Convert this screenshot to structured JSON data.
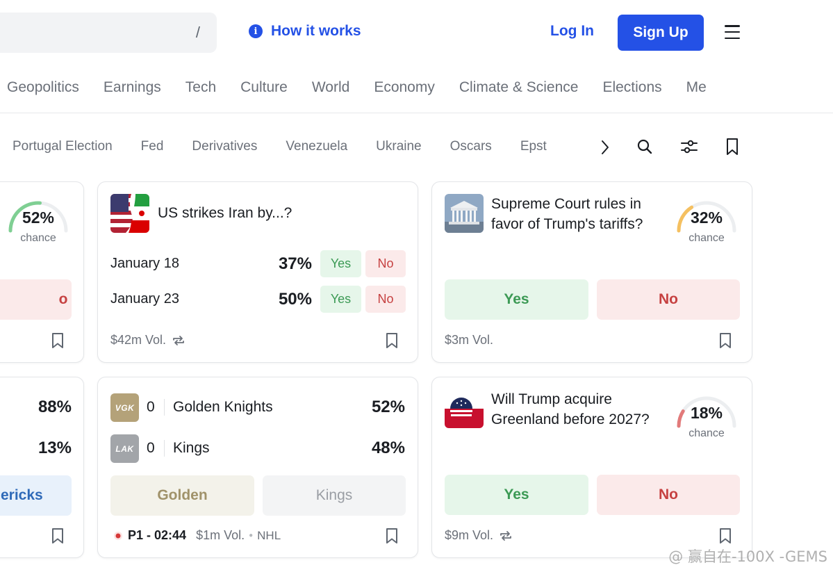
{
  "header": {
    "search_shortcut": "/",
    "how_it_works": "How it works",
    "info_icon": "i",
    "login": "Log In",
    "signup": "Sign Up"
  },
  "categories": [
    "Geopolitics",
    "Earnings",
    "Tech",
    "Culture",
    "World",
    "Economy",
    "Climate & Science",
    "Elections",
    "Me"
  ],
  "topics": [
    "Portugal Election",
    "Fed",
    "Derivatives",
    "Venezuela",
    "Ukraine",
    "Oscars",
    "Epst"
  ],
  "colors": {
    "accent": "#2451e6",
    "yes_bg": "#e6f6ea",
    "yes_text": "#3c9a55",
    "no_bg": "#fbeaea",
    "no_text": "#c64141",
    "gauge_green": "#7fcf93",
    "gauge_yellow": "#f5c060",
    "gauge_red": "#e27a7a",
    "gauge_track": "#eceef0"
  },
  "cards": {
    "left_top": {
      "chance": "52%",
      "chance_value": 0.52,
      "chance_label": "chance",
      "no_fragment": "o"
    },
    "left_bottom": {
      "pct1": "88%",
      "pct2": "13%",
      "button_fragment": "ericks"
    },
    "iran": {
      "title": "US strikes Iran by...?",
      "rows": [
        {
          "label": "January 18",
          "pct": "37%",
          "yes": "Yes",
          "no": "No"
        },
        {
          "label": "January 23",
          "pct": "50%",
          "yes": "Yes",
          "no": "No"
        }
      ],
      "volume": "$42m Vol."
    },
    "scotus": {
      "title": "Supreme Court rules in favor of Trump's tariffs?",
      "chance": "32%",
      "chance_value": 0.32,
      "chance_label": "chance",
      "yes": "Yes",
      "no": "No",
      "volume": "$3m Vol."
    },
    "hockey": {
      "teams": [
        {
          "abbr": "VGK",
          "score": "0",
          "name": "Golden Knights",
          "pct": "52%",
          "color": "#b4a279"
        },
        {
          "abbr": "LAK",
          "score": "0",
          "name": "Kings",
          "pct": "48%",
          "color": "#a2a5a9"
        }
      ],
      "btn1": "Golden",
      "btn2": "Kings",
      "period": "P1 - 02:44",
      "volume": "$1m Vol.",
      "league": "NHL"
    },
    "greenland": {
      "title": "Will Trump acquire Greenland before 2027?",
      "chance": "18%",
      "chance_value": 0.18,
      "chance_label": "chance",
      "yes": "Yes",
      "no": "No",
      "volume": "$9m Vol."
    }
  },
  "watermark": "@ 赢自在-100X -GEMS"
}
